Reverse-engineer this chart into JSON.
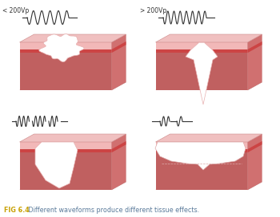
{
  "fig_label": "FIG 6.4",
  "fig_text": " Different waveforms produce different tissue effects.",
  "fig_label_color": "#c8a000",
  "fig_text_color": "#5a7a9a",
  "background": "#ffffff",
  "tissue_top_light": "#f2b8b8",
  "tissue_top_mid": "#e89090",
  "tissue_red_band": "#cc4444",
  "tissue_bottom": "#c06060",
  "tissue_bottom_dark": "#a84040",
  "tissue_side_right": "#d07070",
  "tissue_top_face": "#f0c0c0",
  "label1": "< 200Vp",
  "label2": "> 200Vp",
  "waveform_color": "#333333",
  "caption_bold": "FIG 6.4",
  "caption_normal": " Different waveforms produce different tissue effects."
}
